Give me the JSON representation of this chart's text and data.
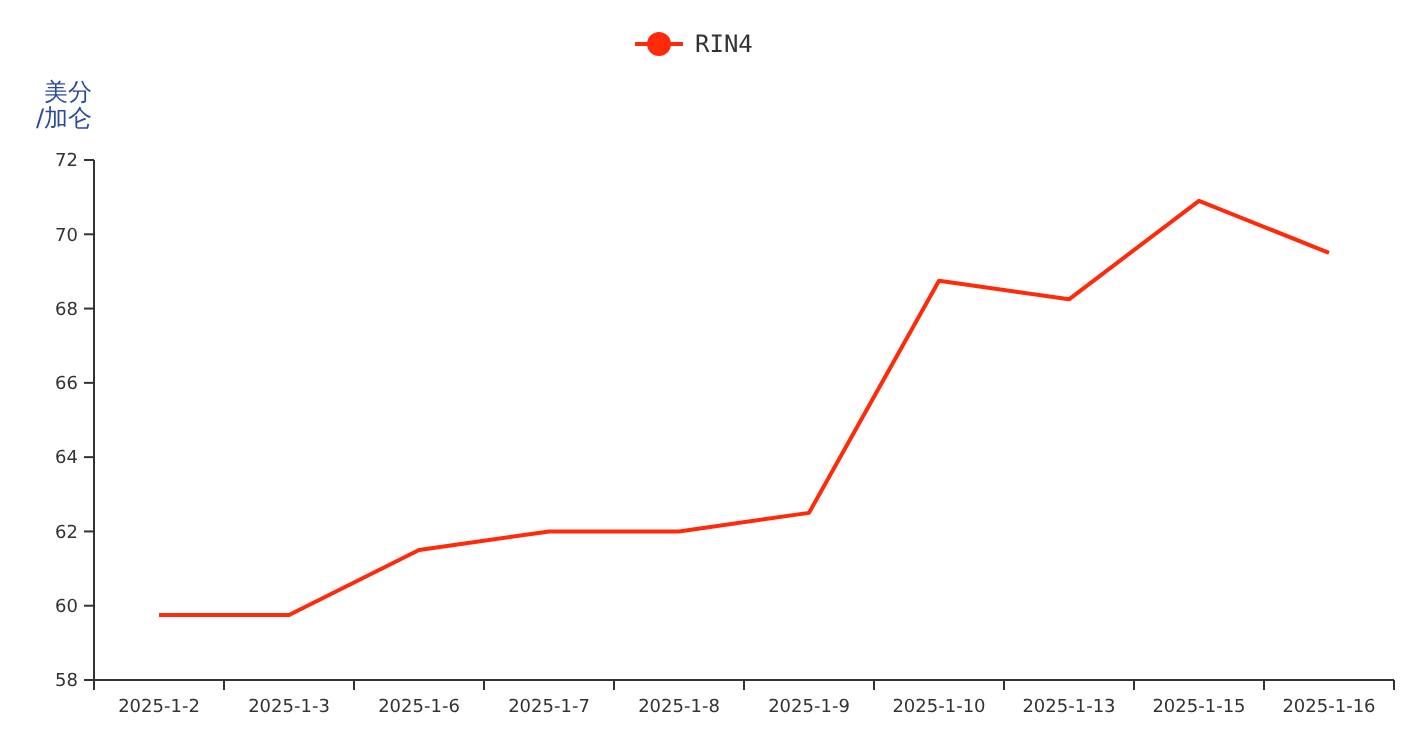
{
  "chart_data": {
    "type": "line",
    "ylabel": "美分/加仑",
    "categories": [
      "2025-1-2",
      "2025-1-3",
      "2025-1-6",
      "2025-1-7",
      "2025-1-8",
      "2025-1-9",
      "2025-1-10",
      "2025-1-13",
      "2025-1-15",
      "2025-1-16"
    ],
    "series": [
      {
        "name": "RIN4",
        "color": "#ff2a0a",
        "values": [
          59.75,
          59.75,
          61.5,
          62,
          62,
          62.5,
          68.75,
          68.25,
          70.9,
          69.5
        ]
      }
    ],
    "ylim": [
      58,
      72
    ],
    "yticks": [
      58,
      60,
      62,
      64,
      66,
      68,
      70,
      72
    ],
    "grid": false,
    "legend": "top",
    "marker": "none",
    "line_style": "solid"
  }
}
